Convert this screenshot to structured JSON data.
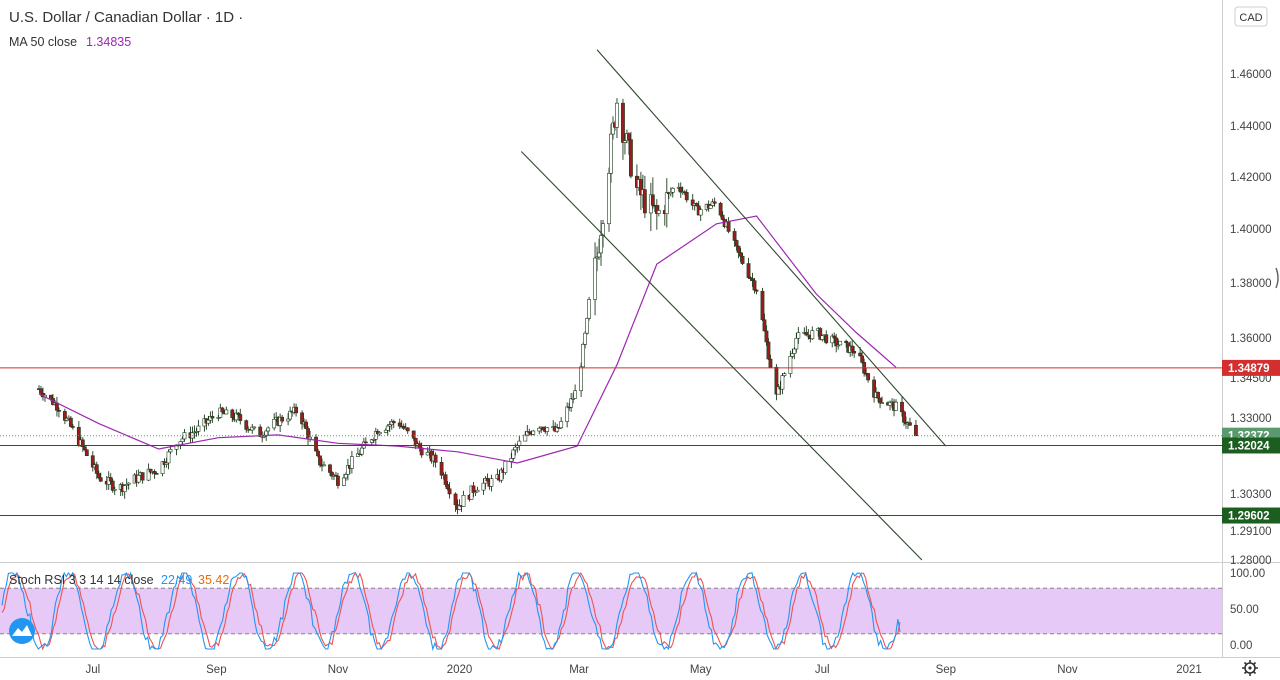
{
  "header": {
    "title": "U.S. Dollar / Canadian Dollar · 1D ·",
    "ma_label": "MA 50 close",
    "ma_value": "1.34835",
    "currency_button": "CAD"
  },
  "indicator": {
    "label": "Stoch RSI 3 3 14 14 close",
    "k_value": "22.49",
    "d_value": "35.42",
    "levels": [
      "100.00",
      "50.00",
      "0.00"
    ]
  },
  "colors": {
    "up": "#ffffff",
    "down": "#9b1c1c",
    "wick": "#1e3a1e",
    "ma": "#9c27b0",
    "stoch_k": "#2196f3",
    "stoch_d": "#ef5350",
    "resistance": "#d32f2f",
    "support": "#1b5e20",
    "channel": "#2e4a2e",
    "price_tag": "#5b9a6e",
    "band": "#e6c9f7"
  },
  "chart_data": {
    "type": "candlestick",
    "title": "U.S. Dollar / Canadian Dollar",
    "interval": "1D",
    "x_ticks": [
      "Jul",
      "Sep",
      "Nov",
      "2020",
      "Mar",
      "May",
      "Jul",
      "Sep",
      "Nov",
      "2021"
    ],
    "y_ticks": [
      "1.46000",
      "1.44000",
      "1.42000",
      "1.40000",
      "1.38000",
      "1.36000",
      "1.34500",
      "1.33000",
      "1.30300",
      "1.29100",
      "1.28000"
    ],
    "ylim": [
      1.2775,
      1.4768
    ],
    "price_tags": [
      {
        "label": "1.34879",
        "value": 1.34879,
        "kind": "resistance"
      },
      {
        "label": "1.32372",
        "value": 1.32372,
        "kind": "last"
      },
      {
        "label": "1.32024",
        "value": 1.32024,
        "kind": "support"
      },
      {
        "label": "1.29602",
        "value": 1.29602,
        "kind": "support"
      }
    ],
    "horizontal_lines": [
      1.34879,
      1.32024,
      1.29602
    ],
    "close_series": [
      [
        "Jun 04 2019",
        1.341
      ],
      [
        "Jun 14 2019",
        1.334
      ],
      [
        "Jun 24 2019",
        1.322
      ],
      [
        "Jul 04 2019",
        1.309
      ],
      [
        "Jul 14 2019",
        1.305
      ],
      [
        "Jul 24 2019",
        1.309
      ],
      [
        "Aug 03 2019",
        1.312
      ],
      [
        "Aug 13 2019",
        1.322
      ],
      [
        "Aug 23 2019",
        1.326
      ],
      [
        "Sep 02 2019",
        1.332
      ],
      [
        "Sep 12 2019",
        1.33
      ],
      [
        "Sep 22 2019",
        1.324
      ],
      [
        "Oct 02 2019",
        1.329
      ],
      [
        "Oct 12 2019",
        1.333
      ],
      [
        "Oct 22 2019",
        1.315
      ],
      [
        "Nov 01 2019",
        1.308
      ],
      [
        "Nov 11 2019",
        1.317
      ],
      [
        "Nov 21 2019",
        1.326
      ],
      [
        "Dec 01 2019",
        1.329
      ],
      [
        "Dec 11 2019",
        1.32
      ],
      [
        "Dec 21 2019",
        1.314
      ],
      [
        "Dec 31 2019",
        1.299
      ],
      [
        "Jan 10 2020",
        1.306
      ],
      [
        "Jan 20 2020",
        1.308
      ],
      [
        "Jan 30 2020",
        1.32
      ],
      [
        "Feb 09 2020",
        1.328
      ],
      [
        "Feb 19 2020",
        1.325
      ],
      [
        "Feb 29 2020",
        1.341
      ],
      [
        "Mar 10 2020",
        1.39
      ],
      [
        "Mar 20 2020",
        1.45
      ],
      [
        "Mar 30 2020",
        1.415
      ],
      [
        "Apr 09 2020",
        1.405
      ],
      [
        "Apr 19 2020",
        1.418
      ],
      [
        "Apr 29 2020",
        1.407
      ],
      [
        "May 09 2020",
        1.41
      ],
      [
        "May 19 2020",
        1.392
      ],
      [
        "May 29 2020",
        1.378
      ],
      [
        "Jun 08 2020",
        1.338
      ],
      [
        "Jun 18 2020",
        1.36
      ],
      [
        "Jun 28 2020",
        1.362
      ],
      [
        "Jul 08 2020",
        1.358
      ],
      [
        "Jul 18 2020",
        1.355
      ],
      [
        "Jul 28 2020",
        1.338
      ],
      [
        "Aug 07 2020",
        1.334
      ],
      [
        "Aug 17 2020",
        1.3237
      ]
    ],
    "ma50": [
      [
        "Jun 04 2019",
        1.339
      ],
      [
        "Jul 04 2019",
        1.328
      ],
      [
        "Aug 03 2019",
        1.319
      ],
      [
        "Sep 02 2019",
        1.323
      ],
      [
        "Oct 02 2019",
        1.324
      ],
      [
        "Nov 01 2019",
        1.321
      ],
      [
        "Dec 01 2019",
        1.32
      ],
      [
        "Dec 31 2019",
        1.318
      ],
      [
        "Jan 30 2020",
        1.314
      ],
      [
        "Feb 29 2020",
        1.32
      ],
      [
        "Mar 20 2020",
        1.35
      ],
      [
        "Apr 09 2020",
        1.387
      ],
      [
        "May 09 2020",
        1.402
      ],
      [
        "May 29 2020",
        1.405
      ],
      [
        "Jun 28 2020",
        1.376
      ],
      [
        "Jul 18 2020",
        1.362
      ],
      [
        "Aug 07 2020",
        1.349
      ]
    ],
    "channel_lines": [
      {
        "from": [
          "Mar 10 2020",
          1.467
        ],
        "to": [
          "Sep 01 2020",
          1.32
        ]
      },
      {
        "from": [
          "Feb 01 2020",
          1.43
        ],
        "to": [
          "Aug 20 2020",
          1.28
        ]
      }
    ],
    "stoch_rsi": {
      "levels": [
        100,
        80,
        20,
        0
      ],
      "k_last": 22.49,
      "d_last": 35.42
    }
  }
}
